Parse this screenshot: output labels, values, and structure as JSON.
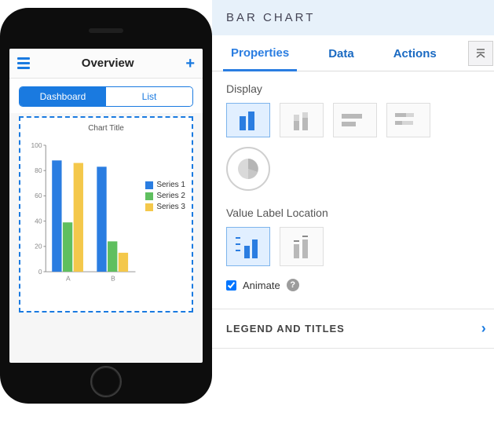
{
  "preview": {
    "app_title": "Overview",
    "segments": {
      "dashboard": "Dashboard",
      "list": "List",
      "active_index": 0
    },
    "chart": {
      "type": "bar",
      "title": "Chart Title",
      "categories": [
        "A",
        "B"
      ],
      "series": [
        {
          "name": "Series 1",
          "color": "#2a7de1",
          "values": [
            88,
            83
          ]
        },
        {
          "name": "Series 2",
          "color": "#5fbf5f",
          "values": [
            39,
            24
          ]
        },
        {
          "name": "Series 3",
          "color": "#f4c84b",
          "values": [
            86,
            15
          ]
        }
      ],
      "ylim": [
        0,
        100
      ],
      "ytick_step": 20,
      "axis_color": "#888888",
      "axis_fontsize": 9,
      "bar_group_width": 0.72,
      "background": "#ffffff",
      "selection_dash_color": "#1a7ae0"
    }
  },
  "panel": {
    "header": "BAR CHART",
    "tabs": {
      "properties": "Properties",
      "data": "Data",
      "actions": "Actions",
      "active": "properties"
    },
    "sections": {
      "display_label": "Display",
      "value_label_loc": "Value Label Location",
      "animate_label": "Animate",
      "legend_titles": "LEGEND AND TITLES"
    },
    "animate_checked": true,
    "colors": {
      "accent": "#2a7de1",
      "header_bg": "#e7f1fa",
      "option_active_bg": "#e1efff",
      "option_active_border": "#7db4ec",
      "inactive_icon": "#b9b9b9"
    },
    "display_options": [
      {
        "id": "vertical-grouped",
        "active": true
      },
      {
        "id": "vertical-stacked",
        "active": false
      },
      {
        "id": "horizontal-grouped",
        "active": false
      },
      {
        "id": "horizontal-stacked",
        "active": false
      },
      {
        "id": "pie",
        "active": false
      }
    ],
    "value_label_options": [
      {
        "id": "outside",
        "active": true
      },
      {
        "id": "inside",
        "active": false
      }
    ]
  }
}
